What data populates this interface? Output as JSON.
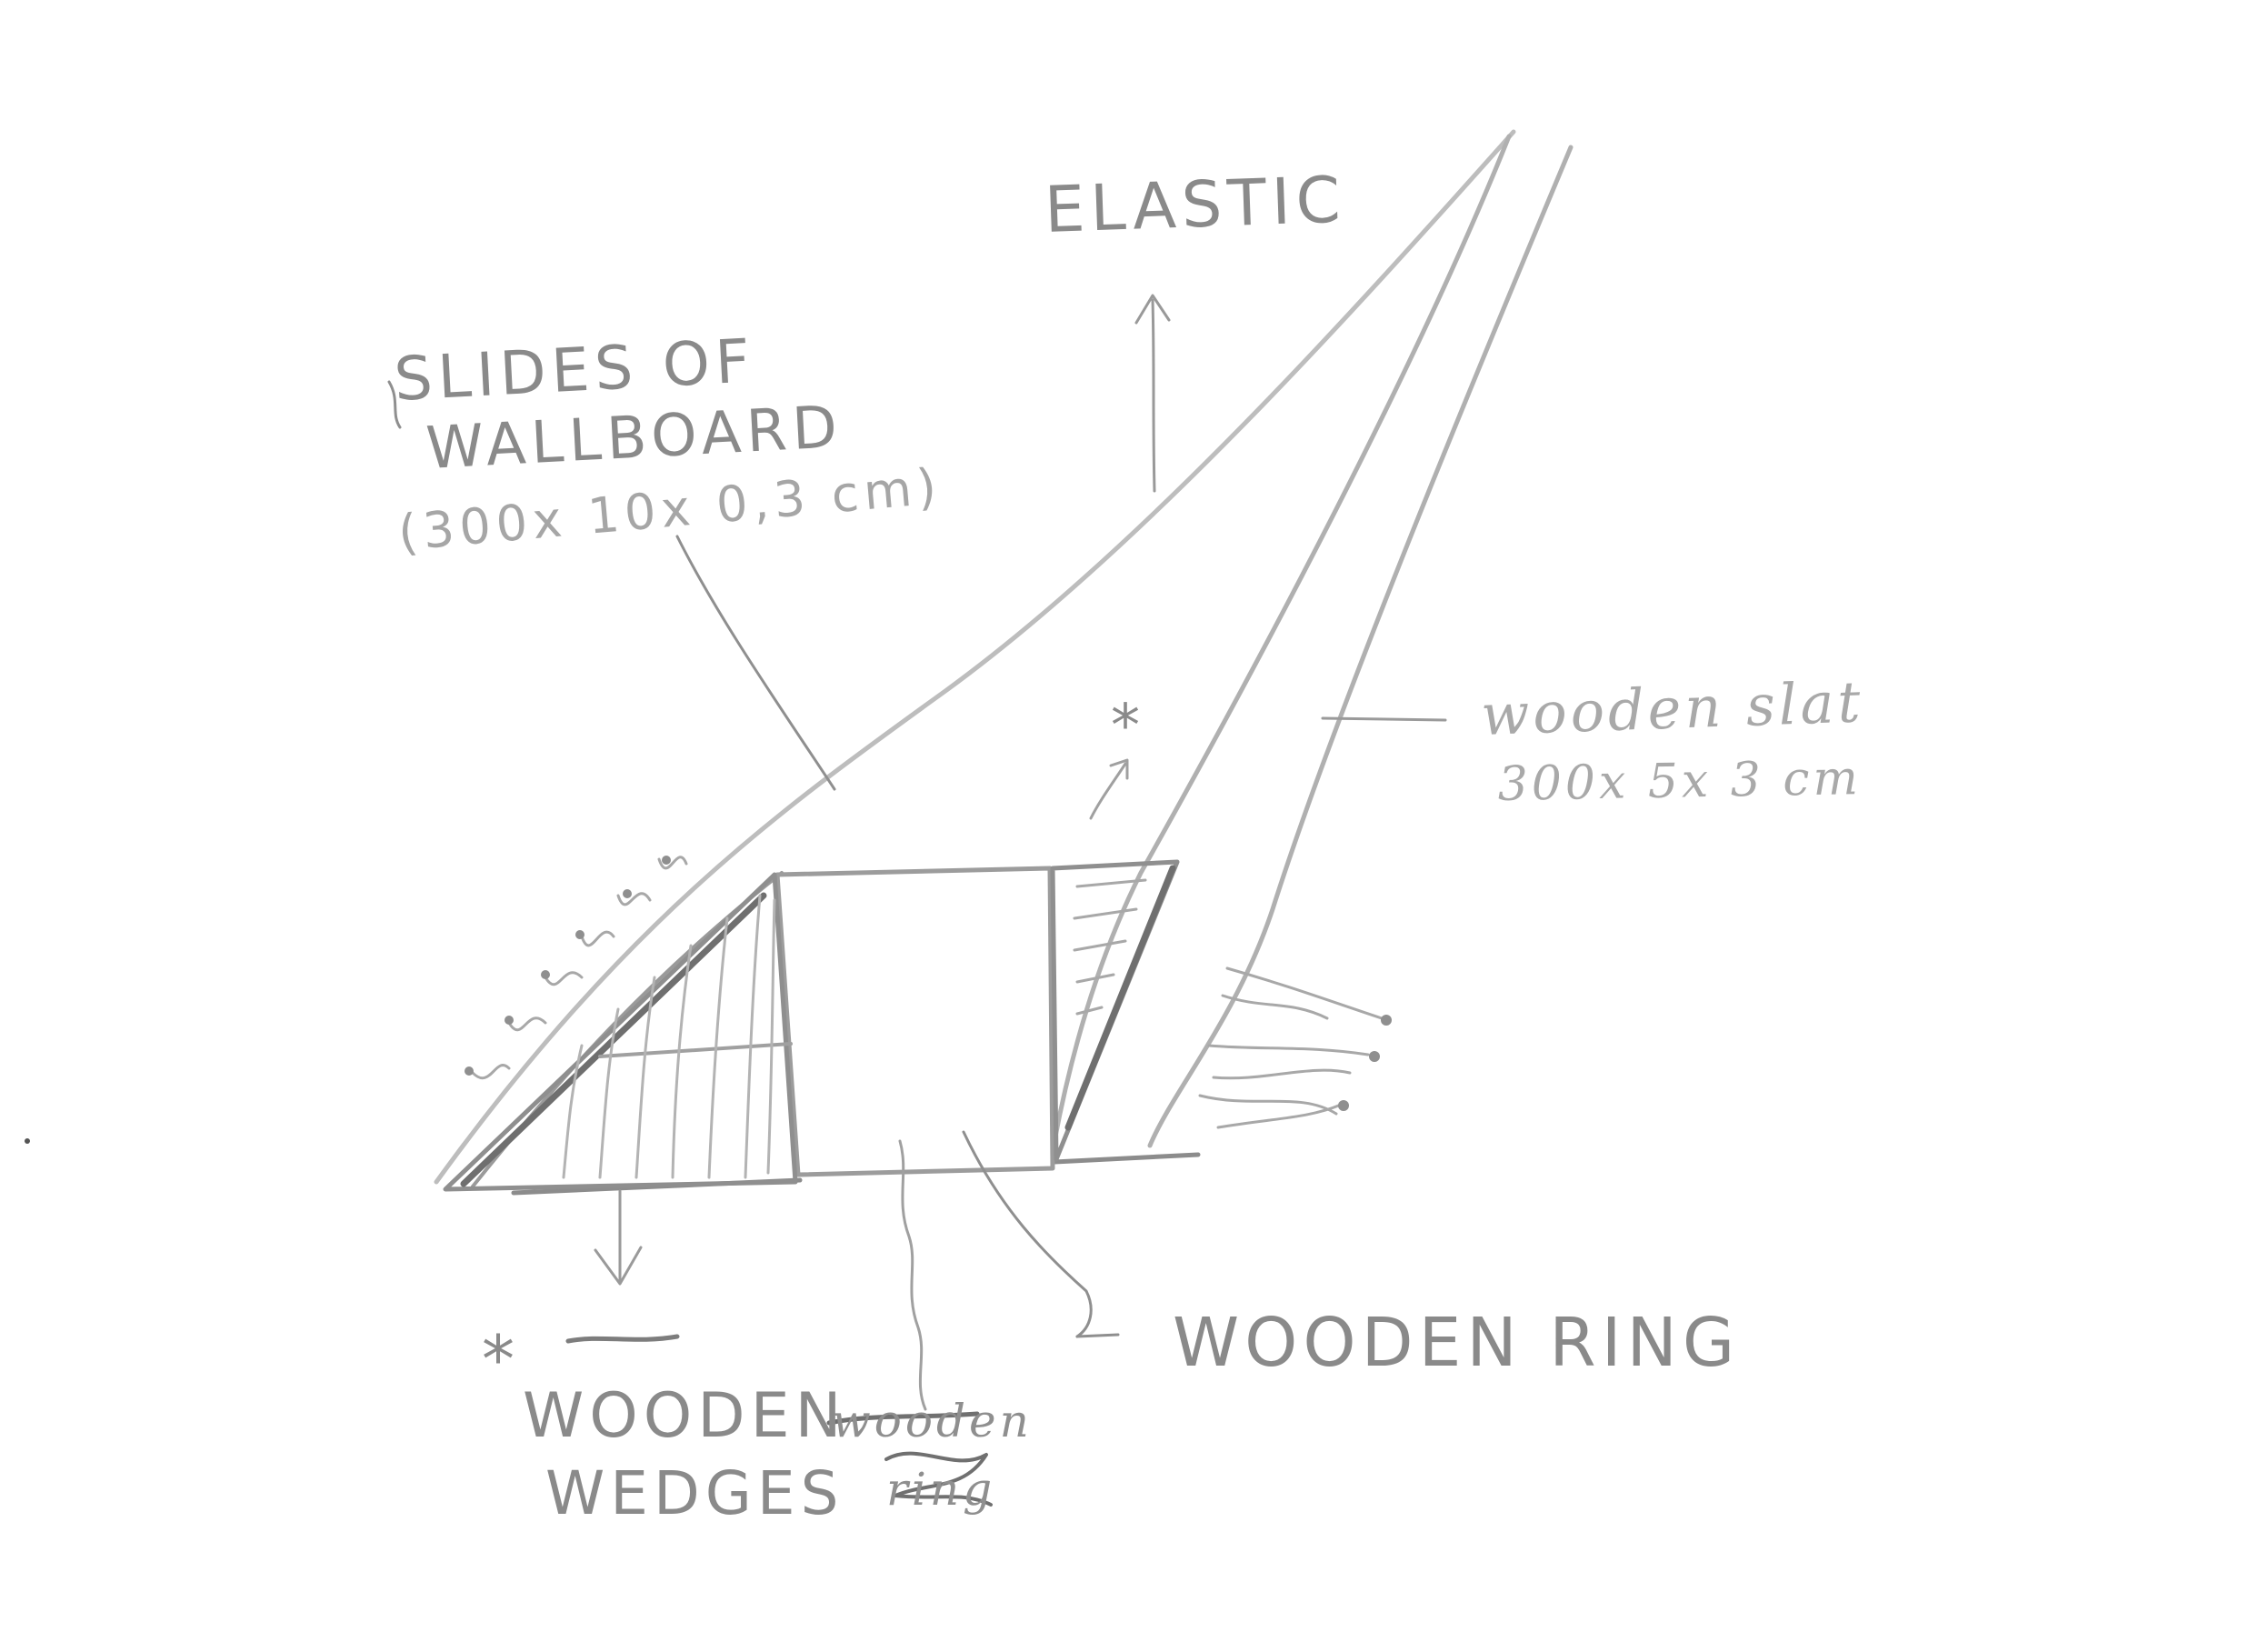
{
  "labels": {
    "elastic": "ELASTIC",
    "slides_line1": "SLIDES OF",
    "slides_line2": "WALLBOARD",
    "slides_line3": "(300x 10x 0,3 cm)",
    "wooden_slat_line1": "wooden slat",
    "wooden_slat_line2": "300x 5x 3 cm",
    "wooden_ring": "WOODEN RING",
    "asterisk_top": "*",
    "asterisk_bottom": "*",
    "wedges_line1": "WOODEN",
    "wedges_line2": "WEDGES",
    "struck_word_1": "wooden",
    "struck_word_2": "ring"
  },
  "colors": {
    "background": "#ffffff",
    "pencil_dark": "#7a7a7a",
    "pencil_light": "#b5b5b5"
  }
}
